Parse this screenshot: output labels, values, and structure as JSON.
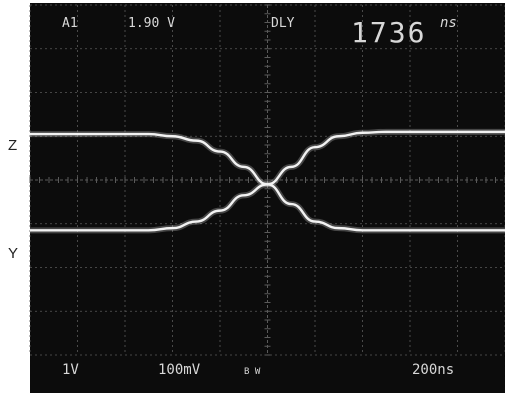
{
  "side_labels": {
    "top": "Z",
    "bottom": "Y"
  },
  "readout": {
    "channel": "A1",
    "trigger_level": "1.90 V",
    "mode": "DLY",
    "delay_value": "1736",
    "delay_unit": "ns",
    "ch1_scale": "1V",
    "ch2_scale": "100mV",
    "bw_marker": "B W",
    "timebase": "200ns"
  },
  "colors": {
    "screen": "#0c0c0c",
    "grid": "#5a5a5a",
    "trace": "#f2f2f2",
    "readout_text": "#d8d8d8",
    "page": "#ffffff"
  },
  "chart_data": {
    "type": "line",
    "title": "",
    "xlabel": "",
    "ylabel": "",
    "grid": true,
    "xlim": [
      0,
      10
    ],
    "ylim": [
      -4,
      4
    ],
    "series": [
      {
        "name": "Z",
        "x": [
          0,
          0.5,
          1,
          1.5,
          2,
          2.5,
          3,
          3.5,
          4,
          4.5,
          5,
          5.5,
          6,
          6.5,
          7,
          7.5,
          8,
          8.5,
          9,
          9.5,
          10
        ],
        "y": [
          1.05,
          1.05,
          1.05,
          1.05,
          1.05,
          1.05,
          1.0,
          0.9,
          0.65,
          0.3,
          -0.1,
          -0.55,
          -0.95,
          -1.1,
          -1.15,
          -1.15,
          -1.15,
          -1.15,
          -1.15,
          -1.15,
          -1.15
        ]
      },
      {
        "name": "Y",
        "x": [
          0,
          0.5,
          1,
          1.5,
          2,
          2.5,
          3,
          3.5,
          4,
          4.5,
          5,
          5.5,
          6,
          6.5,
          7,
          7.5,
          8,
          8.5,
          9,
          9.5,
          10
        ],
        "y": [
          -1.15,
          -1.15,
          -1.15,
          -1.15,
          -1.15,
          -1.15,
          -1.1,
          -0.95,
          -0.7,
          -0.35,
          -0.1,
          0.3,
          0.75,
          1.0,
          1.08,
          1.1,
          1.1,
          1.1,
          1.1,
          1.1,
          1.1
        ]
      }
    ]
  }
}
